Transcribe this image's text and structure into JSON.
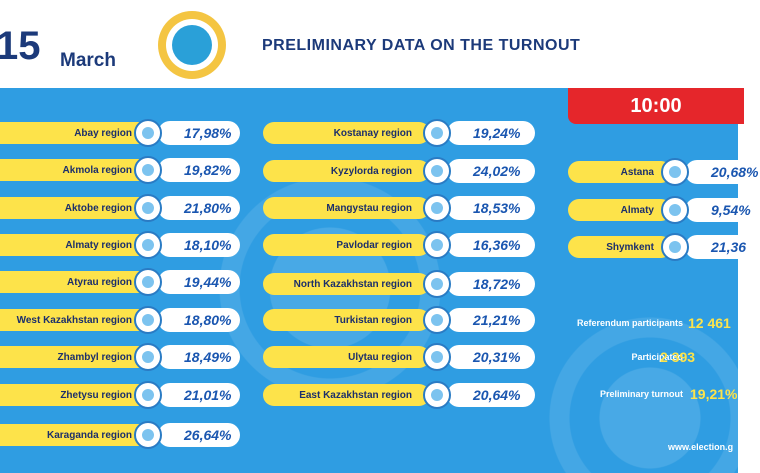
{
  "header": {
    "date_number": "15",
    "date_month": "March",
    "title": "PRELIMINARY DATA ON THE TURNOUT"
  },
  "time": "10:00",
  "regions_left": [
    {
      "name": "Abay region",
      "turnout": "17,98%"
    },
    {
      "name": "Akmola region",
      "turnout": "19,82%"
    },
    {
      "name": "Aktobe region",
      "turnout": "21,80%"
    },
    {
      "name": "Almaty region",
      "turnout": "18,10%"
    },
    {
      "name": "Atyrau region",
      "turnout": "19,44%"
    },
    {
      "name": "West Kazakhstan region",
      "turnout": "18,80%"
    },
    {
      "name": "Zhambyl region",
      "turnout": "18,49%"
    },
    {
      "name": "Zhetysu region",
      "turnout": "21,01%"
    },
    {
      "name": "Karaganda region",
      "turnout": "26,64%"
    }
  ],
  "regions_middle": [
    {
      "name": "Kostanay region",
      "turnout": "19,24%"
    },
    {
      "name": "Kyzylorda region",
      "turnout": "24,02%"
    },
    {
      "name": "Mangystau region",
      "turnout": "18,53%"
    },
    {
      "name": "Pavlodar region",
      "turnout": "16,36%"
    },
    {
      "name": "North Kazakhstan region",
      "turnout": "18,72%"
    },
    {
      "name": "Turkistan region",
      "turnout": "21,21%"
    },
    {
      "name": "Ulytau region",
      "turnout": "20,31%"
    },
    {
      "name": "East Kazakhstan region",
      "turnout": "20,64%"
    }
  ],
  "cities": [
    {
      "name": "Astana",
      "turnout": "20,68%"
    },
    {
      "name": "Almaty",
      "turnout": "9,54%"
    },
    {
      "name": "Shymkent",
      "turnout": "21,36"
    }
  ],
  "summary": [
    {
      "label": "Referendum participants",
      "value": "12 461"
    },
    {
      "label": "Participated",
      "value": "2 393"
    },
    {
      "label": "Preliminary turnout",
      "value": "19,21%"
    }
  ],
  "website": "www.election.g"
}
